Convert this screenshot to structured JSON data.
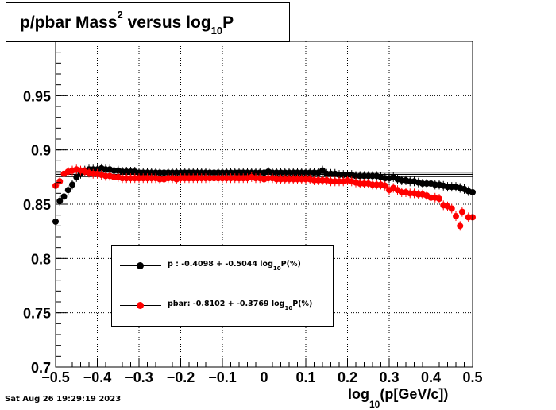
{
  "title": {
    "main": "p/pbar Mass",
    "sup": "2",
    "mid": " versus log",
    "sub": "10",
    "end": "P"
  },
  "xlabel": {
    "pre": "log",
    "sub": "10",
    "post": "(p[GeV/c])"
  },
  "timestamp": "Sat Aug 26 19:29:19 2023",
  "legend": [
    {
      "name": "p",
      "pre": "p  : -0.4098 + -0.5044 log",
      "sub": "10",
      "post": "P(%)",
      "color": "#000000"
    },
    {
      "name": "pbar",
      "pre": "pbar: -0.8102 + -0.3769 log",
      "sub": "10",
      "post": "P(%)",
      "color": "#ff0000"
    }
  ],
  "chart_data": {
    "type": "scatter",
    "xlim": [
      -0.5,
      0.5
    ],
    "ylim": [
      0.7,
      1.0
    ],
    "x_ticks": [
      -0.5,
      -0.4,
      -0.3,
      -0.2,
      -0.1,
      0,
      0.1,
      0.2,
      0.3,
      0.4,
      0.5
    ],
    "x_tick_labels": [
      "−0.5",
      "−0.4",
      "−0.3",
      "−0.2",
      "−0.1",
      "0",
      "0.1",
      "0.2",
      "0.3",
      "0.4",
      "0.5"
    ],
    "y_ticks": [
      0.7,
      0.75,
      0.8,
      0.85,
      0.9,
      0.95
    ],
    "y_tick_labels": [
      "0.7",
      "0.75",
      "0.8",
      "0.85",
      "0.9",
      "0.95"
    ],
    "grid": true,
    "ref_lines_y": [
      0.8755,
      0.8775,
      0.8795
    ],
    "series": [
      {
        "name": "p",
        "color": "#000000",
        "points": [
          [
            -0.5,
            0.834
          ],
          [
            -0.49,
            0.853
          ],
          [
            -0.48,
            0.857
          ],
          [
            -0.47,
            0.863
          ],
          [
            -0.46,
            0.868
          ],
          [
            -0.45,
            0.875
          ],
          [
            -0.44,
            0.878
          ],
          [
            -0.43,
            0.881
          ],
          [
            -0.42,
            0.882
          ],
          [
            -0.41,
            0.882
          ],
          [
            -0.4,
            0.882
          ],
          [
            -0.39,
            0.883
          ],
          [
            -0.38,
            0.882
          ],
          [
            -0.37,
            0.882
          ],
          [
            -0.36,
            0.881
          ],
          [
            -0.35,
            0.881
          ],
          [
            -0.34,
            0.88
          ],
          [
            -0.33,
            0.88
          ],
          [
            -0.32,
            0.88
          ],
          [
            -0.31,
            0.88
          ],
          [
            -0.3,
            0.879
          ],
          [
            -0.29,
            0.879
          ],
          [
            -0.28,
            0.879
          ],
          [
            -0.27,
            0.879
          ],
          [
            -0.26,
            0.879
          ],
          [
            -0.25,
            0.879
          ],
          [
            -0.24,
            0.879
          ],
          [
            -0.23,
            0.879
          ],
          [
            -0.22,
            0.879
          ],
          [
            -0.21,
            0.879
          ],
          [
            -0.2,
            0.879
          ],
          [
            -0.19,
            0.879
          ],
          [
            -0.18,
            0.879
          ],
          [
            -0.17,
            0.879
          ],
          [
            -0.16,
            0.879
          ],
          [
            -0.15,
            0.879
          ],
          [
            -0.14,
            0.879
          ],
          [
            -0.13,
            0.879
          ],
          [
            -0.12,
            0.879
          ],
          [
            -0.11,
            0.879
          ],
          [
            -0.1,
            0.879
          ],
          [
            -0.09,
            0.879
          ],
          [
            -0.08,
            0.879
          ],
          [
            -0.07,
            0.879
          ],
          [
            -0.06,
            0.879
          ],
          [
            -0.05,
            0.879
          ],
          [
            -0.04,
            0.879
          ],
          [
            -0.03,
            0.879
          ],
          [
            -0.02,
            0.879
          ],
          [
            -0.01,
            0.879
          ],
          [
            0.0,
            0.879
          ],
          [
            0.01,
            0.88
          ],
          [
            0.02,
            0.879
          ],
          [
            0.03,
            0.879
          ],
          [
            0.04,
            0.879
          ],
          [
            0.05,
            0.879
          ],
          [
            0.06,
            0.879
          ],
          [
            0.07,
            0.879
          ],
          [
            0.08,
            0.879
          ],
          [
            0.09,
            0.879
          ],
          [
            0.1,
            0.879
          ],
          [
            0.11,
            0.879
          ],
          [
            0.12,
            0.879
          ],
          [
            0.13,
            0.879
          ],
          [
            0.14,
            0.881
          ],
          [
            0.15,
            0.878
          ],
          [
            0.16,
            0.878
          ],
          [
            0.17,
            0.878
          ],
          [
            0.18,
            0.877
          ],
          [
            0.19,
            0.877
          ],
          [
            0.2,
            0.877
          ],
          [
            0.21,
            0.877
          ],
          [
            0.22,
            0.876
          ],
          [
            0.23,
            0.876
          ],
          [
            0.24,
            0.876
          ],
          [
            0.25,
            0.876
          ],
          [
            0.26,
            0.876
          ],
          [
            0.27,
            0.876
          ],
          [
            0.28,
            0.875
          ],
          [
            0.29,
            0.874
          ],
          [
            0.3,
            0.874
          ],
          [
            0.31,
            0.875
          ],
          [
            0.32,
            0.873
          ],
          [
            0.33,
            0.872
          ],
          [
            0.34,
            0.872
          ],
          [
            0.35,
            0.871
          ],
          [
            0.36,
            0.871
          ],
          [
            0.37,
            0.87
          ],
          [
            0.38,
            0.869
          ],
          [
            0.39,
            0.869
          ],
          [
            0.4,
            0.869
          ],
          [
            0.41,
            0.868
          ],
          [
            0.42,
            0.868
          ],
          [
            0.43,
            0.867
          ],
          [
            0.44,
            0.866
          ],
          [
            0.45,
            0.866
          ],
          [
            0.46,
            0.866
          ],
          [
            0.47,
            0.865
          ],
          [
            0.48,
            0.864
          ],
          [
            0.49,
            0.862
          ],
          [
            0.5,
            0.861
          ]
        ]
      },
      {
        "name": "pbar",
        "color": "#ff0000",
        "points": [
          [
            -0.5,
            0.867
          ],
          [
            -0.49,
            0.871
          ],
          [
            -0.48,
            0.878
          ],
          [
            -0.47,
            0.88
          ],
          [
            -0.46,
            0.881
          ],
          [
            -0.45,
            0.882
          ],
          [
            -0.44,
            0.881
          ],
          [
            -0.43,
            0.88
          ],
          [
            -0.42,
            0.879
          ],
          [
            -0.41,
            0.878
          ],
          [
            -0.4,
            0.878
          ],
          [
            -0.39,
            0.877
          ],
          [
            -0.38,
            0.876
          ],
          [
            -0.37,
            0.876
          ],
          [
            -0.36,
            0.875
          ],
          [
            -0.35,
            0.875
          ],
          [
            -0.34,
            0.874
          ],
          [
            -0.33,
            0.874
          ],
          [
            -0.32,
            0.874
          ],
          [
            -0.31,
            0.874
          ],
          [
            -0.3,
            0.874
          ],
          [
            -0.29,
            0.874
          ],
          [
            -0.28,
            0.874
          ],
          [
            -0.27,
            0.874
          ],
          [
            -0.26,
            0.874
          ],
          [
            -0.25,
            0.873
          ],
          [
            -0.24,
            0.873
          ],
          [
            -0.23,
            0.874
          ],
          [
            -0.22,
            0.874
          ],
          [
            -0.21,
            0.873
          ],
          [
            -0.2,
            0.874
          ],
          [
            -0.19,
            0.874
          ],
          [
            -0.18,
            0.874
          ],
          [
            -0.17,
            0.874
          ],
          [
            -0.16,
            0.874
          ],
          [
            -0.15,
            0.874
          ],
          [
            -0.14,
            0.874
          ],
          [
            -0.13,
            0.874
          ],
          [
            -0.12,
            0.874
          ],
          [
            -0.11,
            0.874
          ],
          [
            -0.1,
            0.874
          ],
          [
            -0.09,
            0.874
          ],
          [
            -0.08,
            0.874
          ],
          [
            -0.07,
            0.874
          ],
          [
            -0.06,
            0.874
          ],
          [
            -0.05,
            0.874
          ],
          [
            -0.04,
            0.874
          ],
          [
            -0.03,
            0.875
          ],
          [
            -0.02,
            0.874
          ],
          [
            -0.01,
            0.874
          ],
          [
            0.0,
            0.873
          ],
          [
            0.01,
            0.874
          ],
          [
            0.02,
            0.874
          ],
          [
            0.03,
            0.873
          ],
          [
            0.04,
            0.873
          ],
          [
            0.05,
            0.873
          ],
          [
            0.06,
            0.873
          ],
          [
            0.07,
            0.873
          ],
          [
            0.08,
            0.873
          ],
          [
            0.09,
            0.873
          ],
          [
            0.1,
            0.873
          ],
          [
            0.11,
            0.873
          ],
          [
            0.12,
            0.872
          ],
          [
            0.13,
            0.872
          ],
          [
            0.14,
            0.872
          ],
          [
            0.15,
            0.872
          ],
          [
            0.16,
            0.871
          ],
          [
            0.17,
            0.871
          ],
          [
            0.18,
            0.871
          ],
          [
            0.19,
            0.871
          ],
          [
            0.2,
            0.872
          ],
          [
            0.21,
            0.871
          ],
          [
            0.22,
            0.87
          ],
          [
            0.23,
            0.869
          ],
          [
            0.24,
            0.869
          ],
          [
            0.25,
            0.869
          ],
          [
            0.26,
            0.868
          ],
          [
            0.27,
            0.868
          ],
          [
            0.28,
            0.868
          ],
          [
            0.29,
            0.867
          ],
          [
            0.3,
            0.863
          ],
          [
            0.31,
            0.865
          ],
          [
            0.32,
            0.863
          ],
          [
            0.33,
            0.861
          ],
          [
            0.34,
            0.861
          ],
          [
            0.35,
            0.86
          ],
          [
            0.36,
            0.86
          ],
          [
            0.37,
            0.859
          ],
          [
            0.38,
            0.859
          ],
          [
            0.39,
            0.858
          ],
          [
            0.4,
            0.856
          ],
          [
            0.41,
            0.856
          ],
          [
            0.42,
            0.855
          ],
          [
            0.43,
            0.849
          ],
          [
            0.44,
            0.848
          ],
          [
            0.45,
            0.846
          ],
          [
            0.46,
            0.839
          ],
          [
            0.47,
            0.83
          ],
          [
            0.475,
            0.843
          ],
          [
            0.49,
            0.838
          ],
          [
            0.5,
            0.838
          ]
        ]
      }
    ]
  }
}
